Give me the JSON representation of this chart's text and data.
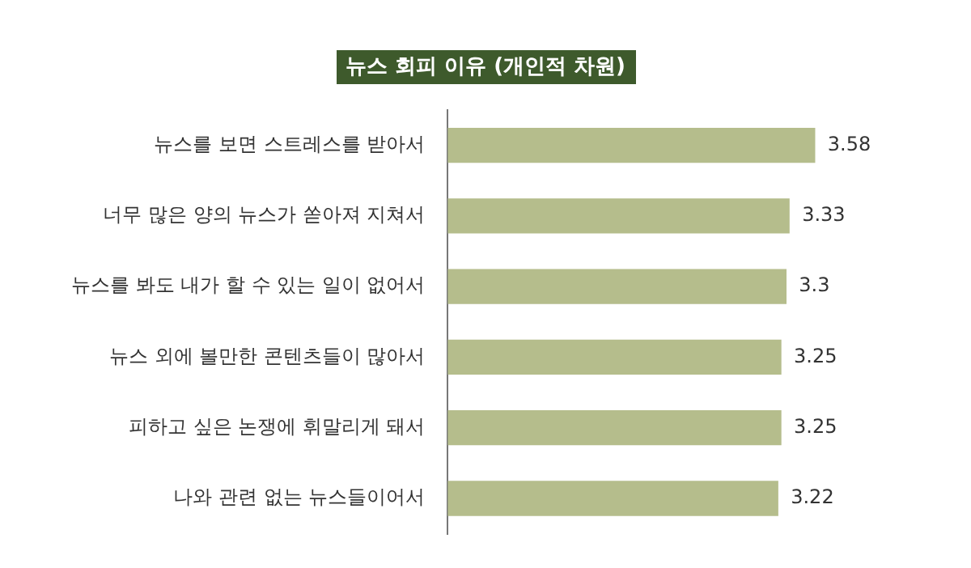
{
  "chart_data": {
    "type": "bar",
    "orientation": "horizontal",
    "title": "뉴스 회피 이유 (개인적 차원)",
    "categories": [
      "뉴스를 보면 스트레스를 받아서",
      "너무 많은 양의 뉴스가 쏟아져 지쳐서",
      "뉴스를 봐도 내가 할 수 있는 일이 없어서",
      "뉴스 외에 볼만한 콘텐츠들이 많아서",
      "피하고 싶은 논쟁에 휘말리게 돼서",
      "나와 관련 없는 뉴스들이어서"
    ],
    "values": [
      3.58,
      3.33,
      3.3,
      3.25,
      3.25,
      3.22
    ],
    "color": "#b5bd8c",
    "tick_labels": "y",
    "data_labels": true,
    "legend": false
  }
}
